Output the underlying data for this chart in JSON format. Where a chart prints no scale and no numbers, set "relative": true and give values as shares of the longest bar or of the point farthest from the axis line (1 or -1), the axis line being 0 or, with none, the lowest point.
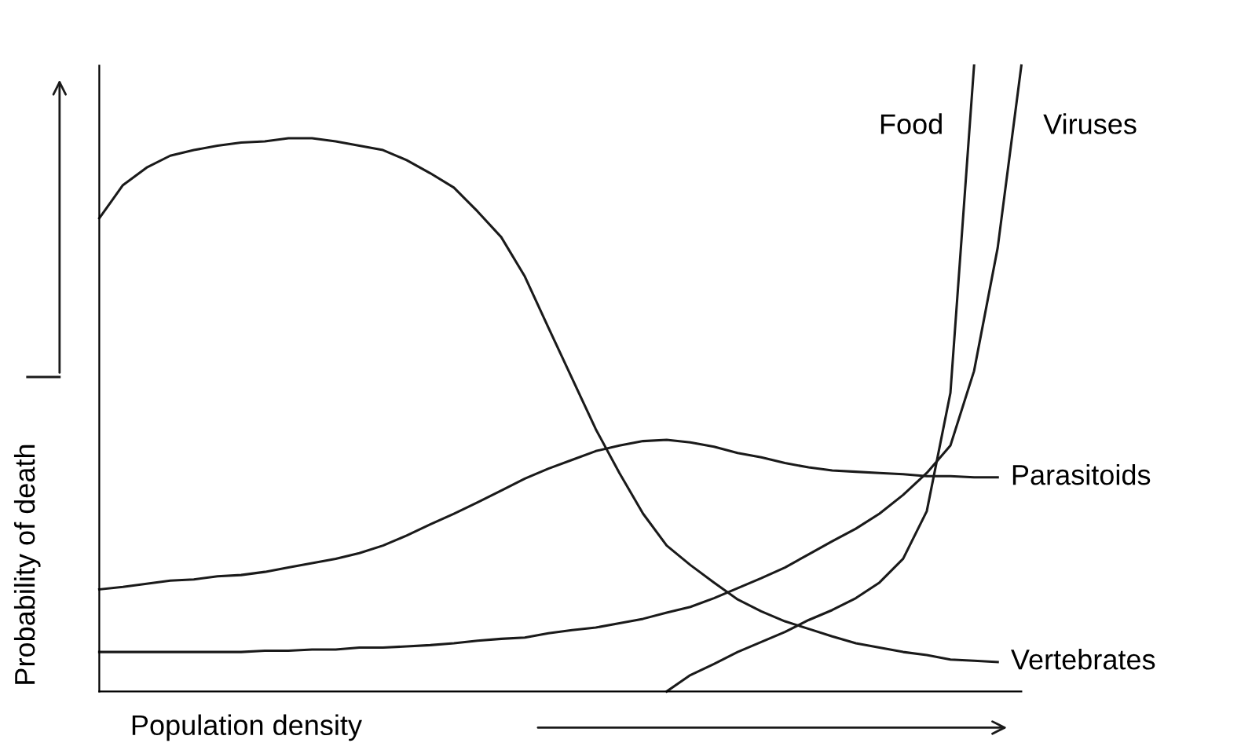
{
  "chart_data": {
    "type": "line",
    "relative": true,
    "xlabel": "Population density",
    "ylabel": "Probability of death",
    "tick_labels": false,
    "marker": "none",
    "line_style": "solid",
    "categories": [
      null,
      null,
      null,
      null,
      null,
      null,
      null,
      null,
      null,
      null,
      null,
      null,
      null,
      null,
      null,
      null,
      null,
      null,
      null,
      null,
      null,
      null,
      null,
      null,
      null,
      null,
      null,
      null,
      null,
      null,
      null,
      null,
      null,
      null,
      null,
      null,
      null,
      null,
      null,
      null
    ],
    "series": [
      {
        "name": "Food",
        "color": "#1a1a1a",
        "values": [
          null,
          null,
          null,
          null,
          null,
          null,
          null,
          null,
          null,
          null,
          null,
          null,
          null,
          null,
          null,
          null,
          null,
          null,
          null,
          null,
          null,
          null,
          null,
          null,
          0,
          0.026,
          0.044,
          0.063,
          0.079,
          0.095,
          0.114,
          0.13,
          0.149,
          0.174,
          0.212,
          0.288,
          0.477,
          1.0,
          null,
          null
        ]
      },
      {
        "name": "Viruses",
        "color": "#1a1a1a",
        "values": [
          0.063,
          0.063,
          0.063,
          0.063,
          0.063,
          0.063,
          0.063,
          0.065,
          0.065,
          0.067,
          0.067,
          0.07,
          0.07,
          0.072,
          0.074,
          0.077,
          0.081,
          0.084,
          0.086,
          0.093,
          0.098,
          0.102,
          0.109,
          0.116,
          0.126,
          0.135,
          0.149,
          0.165,
          0.181,
          0.198,
          0.219,
          0.24,
          0.26,
          0.284,
          0.314,
          0.349,
          0.393,
          0.512,
          0.709,
          1.0
        ]
      },
      {
        "name": "Parasitoids",
        "color": "#1a1a1a",
        "values": [
          0.163,
          0.167,
          0.172,
          0.177,
          0.179,
          0.184,
          0.186,
          0.191,
          0.198,
          0.205,
          0.212,
          0.221,
          0.233,
          0.249,
          0.267,
          0.284,
          0.302,
          0.321,
          0.34,
          0.356,
          0.37,
          0.384,
          0.393,
          0.4,
          0.402,
          0.398,
          0.391,
          0.381,
          0.374,
          0.365,
          0.358,
          0.353,
          0.351,
          0.349,
          0.347,
          0.344,
          0.344,
          0.342,
          0.342,
          null
        ]
      },
      {
        "name": "Vertebrates",
        "color": "#1a1a1a",
        "values": [
          0.756,
          0.809,
          0.837,
          0.856,
          0.865,
          0.872,
          0.877,
          0.879,
          0.884,
          0.884,
          0.879,
          0.872,
          0.865,
          0.849,
          0.828,
          0.805,
          0.767,
          0.726,
          0.663,
          0.581,
          0.5,
          0.419,
          0.349,
          0.284,
          0.233,
          0.202,
          0.174,
          0.147,
          0.128,
          0.112,
          0.1,
          0.088,
          0.077,
          0.07,
          0.063,
          0.058,
          0.051,
          0.049,
          0.047,
          null
        ]
      }
    ]
  }
}
